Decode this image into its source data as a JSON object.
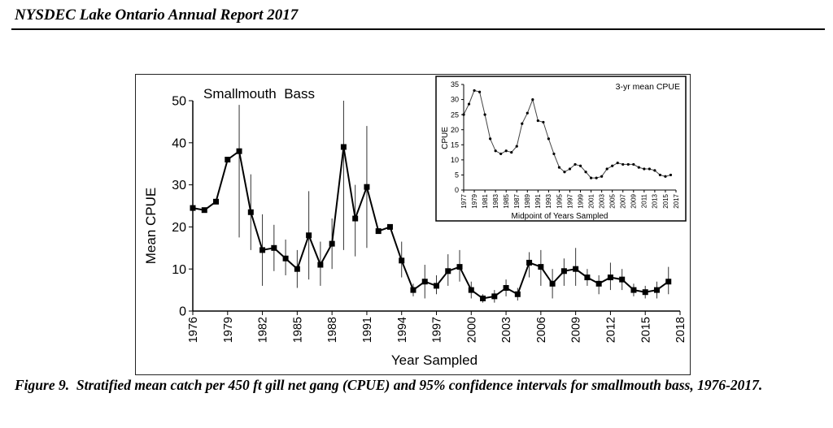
{
  "header": {
    "title": "NYSDEC Lake Ontario Annual Report 2017"
  },
  "caption": {
    "label": "Figure 9.",
    "text": "Stratified mean catch per 450 ft gill net gang (CPUE) and 95% confidence intervals for smallmouth bass, 1976-2017."
  },
  "chart_data": [
    {
      "type": "line",
      "title": "Smallmouth  Bass",
      "xlabel": "Year Sampled",
      "ylabel": "Mean CPUE",
      "xlim": [
        1976,
        2018
      ],
      "ylim": [
        0,
        50
      ],
      "xticks": [
        "1976",
        "1979",
        "1982",
        "1985",
        "1988",
        "1991",
        "1994",
        "1997",
        "2000",
        "2003",
        "2006",
        "2009",
        "2012",
        "2015",
        "2018"
      ],
      "yticks": [
        "0",
        "10",
        "20",
        "30",
        "40",
        "50"
      ],
      "grid": false,
      "series": [
        {
          "x": [
            1976,
            1977,
            1978,
            1979,
            1980,
            1981,
            1982,
            1983,
            1984,
            1985,
            1986,
            1987,
            1988,
            1989,
            1990,
            1991,
            1992,
            1993,
            1994,
            1995,
            1996,
            1997,
            1998,
            1999,
            2000,
            2001,
            2002,
            2003,
            2004,
            2005,
            2006,
            2007,
            2008,
            2009,
            2010,
            2011,
            2012,
            2013,
            2014,
            2015,
            2016,
            2017
          ],
          "y": [
            24.5,
            24,
            26,
            36,
            38,
            23.5,
            14.5,
            15,
            12.5,
            10,
            18,
            11,
            16,
            39,
            22,
            29.5,
            19,
            20,
            12,
            5,
            7,
            6,
            9.5,
            10.5,
            5,
            3,
            3.5,
            5.5,
            4,
            11.5,
            10.5,
            6.5,
            9.5,
            10,
            8,
            6.5,
            8,
            7.5,
            5,
            4.5,
            5,
            7
          ],
          "lower": [
            null,
            null,
            null,
            null,
            17.5,
            14.5,
            6,
            9.5,
            8.5,
            5.5,
            7.5,
            6,
            10,
            14.5,
            13,
            15,
            null,
            null,
            8,
            3.5,
            3,
            4,
            6,
            7,
            3,
            2,
            2,
            3.5,
            2.5,
            8,
            6,
            3,
            6,
            6,
            6,
            4,
            5,
            5,
            3.5,
            3,
            3,
            4
          ],
          "upper": [
            null,
            null,
            null,
            null,
            49,
            32.5,
            23,
            20.5,
            17,
            14.5,
            28.5,
            16.5,
            22,
            50,
            30,
            44,
            null,
            null,
            16.5,
            6.5,
            11,
            8.5,
            13.5,
            14.5,
            7,
            4,
            5,
            7.5,
            5.5,
            14,
            14.5,
            10,
            12.5,
            15,
            10,
            8.5,
            11.5,
            10,
            6.5,
            6,
            7,
            10.5
          ]
        }
      ],
      "marker": "square",
      "color": "#000000"
    },
    {
      "type": "line",
      "title": "3-yr mean CPUE",
      "xlabel": "Midpoint of Years Sampled",
      "ylabel": "CPUE",
      "xlim": [
        1977,
        2017
      ],
      "ylim": [
        0,
        35
      ],
      "xticks": [
        "1977",
        "1979",
        "1981",
        "1983",
        "1985",
        "1987",
        "1989",
        "1991",
        "1993",
        "1995",
        "1997",
        "1999",
        "2001",
        "2003",
        "2005",
        "2007",
        "2009",
        "2011",
        "2013",
        "2015",
        "2017"
      ],
      "yticks": [
        "0",
        "5",
        "10",
        "15",
        "20",
        "25",
        "30",
        "35"
      ],
      "grid": false,
      "series": [
        {
          "x": [
            1977,
            1978,
            1979,
            1980,
            1981,
            1982,
            1983,
            1984,
            1985,
            1986,
            1987,
            1988,
            1989,
            1990,
            1991,
            1992,
            1993,
            1994,
            1995,
            1996,
            1997,
            1998,
            1999,
            2000,
            2001,
            2002,
            2003,
            2004,
            2005,
            2006,
            2007,
            2008,
            2009,
            2010,
            2011,
            2012,
            2013,
            2014,
            2015,
            2016
          ],
          "y": [
            25,
            28.5,
            33,
            32.5,
            25,
            17,
            13,
            12,
            13,
            12.5,
            14.5,
            22,
            25.5,
            30,
            23,
            22.5,
            17,
            12,
            7.5,
            6,
            7,
            8.5,
            8,
            6,
            4,
            4,
            4.5,
            7,
            8,
            9,
            8.5,
            8.5,
            8.5,
            7.5,
            7,
            7,
            6.5,
            5,
            4.5,
            5
          ]
        }
      ],
      "marker": "dot",
      "color": "#000000"
    }
  ]
}
